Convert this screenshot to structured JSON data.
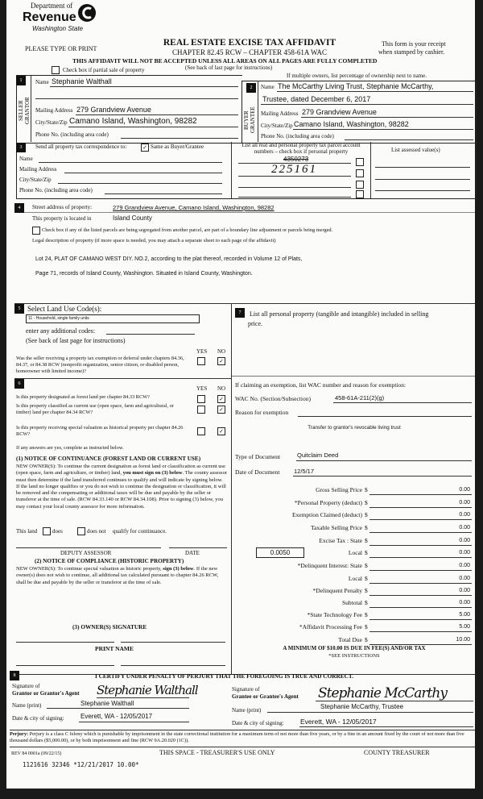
{
  "header": {
    "logo": {
      "line1": "Department of",
      "line2": "Revenue",
      "line3": "Washington State"
    },
    "title": "REAL ESTATE EXCISE TAX AFFIDAVIT",
    "chapter": "CHAPTER 82.45 RCW – CHAPTER 458-61A WAC",
    "warning": "THIS AFFIDAVIT WILL NOT BE ACCEPTED UNLESS ALL AREAS ON ALL PAGES ARE FULLY COMPLETED",
    "see_back": "(See back of last page for instructions)",
    "please_type": "PLEASE TYPE OR PRINT",
    "receipt_1": "This form is your receipt",
    "receipt_2": "when stamped by cashier.",
    "partial_sale_label": "Check box if partial sale of property",
    "partial_sale_checked": false,
    "multiple_owners": "If multiple owners, list percentage of ownership next to name."
  },
  "seller": {
    "number": "1",
    "side_label_1": "SELLER",
    "side_label_2": "GRANTOR",
    "name_label": "Name",
    "name": "Stephanie Walthall",
    "mailing_label": "Mailing Address",
    "mailing": "279 Grandview Avenue",
    "city_label": "City/State/Zip",
    "city": "Camano Island, Washington, 98282",
    "phone_label": "Phone No. (including area code)"
  },
  "buyer": {
    "number": "2",
    "side_label_1": "BUYER",
    "side_label_2": "GRANTEE",
    "name_label": "Name",
    "name_line1": "The McCarthy Living Trust, Stephanie McCarthy,",
    "name_line2": "Trustee, dated December 6, 2017",
    "mailing_label": "Mailing Address",
    "mailing": "279 Grandview Avenue",
    "city_label": "City/State/Zip",
    "city": "Camano Island, Washington, 98282",
    "phone_label": "Phone No. (including area code)"
  },
  "correspondence": {
    "number": "3",
    "label": "Send all property tax correspondence to:",
    "same_as_label": "Same as Buyer/Grantee",
    "same_as_checked": true,
    "name_label": "Name",
    "mailing_label": "Mailing Address",
    "city_label": "City/State/Zip",
    "phone_label": "Phone No. (including area code)"
  },
  "parcels": {
    "header_1": "List all real and personal property tax parcel account",
    "header_2": "numbers – check box if personal property",
    "assessed_header": "List assessed value(s)",
    "struck_number": "4350273",
    "handwritten_number": "225161"
  },
  "property": {
    "number": "4",
    "street_label": "Street address of property:",
    "street": "279 Grandview Avenue, Camano Island, Washington, 98282",
    "located_label": "This property is located in",
    "county": "Island County",
    "segregated_label": "Check box if any of the listed parcels are being segregated from another parcel, are part of a boundary line adjustment or parcels being merged.",
    "legal_label": "Legal description of property (if more space is needed, you may attach a separate sheet to each page of the affidavit)",
    "legal_line1": "Lot 24, PLAT OF CAMANO WEST DIY. NO.2, according to the plat thereof, recorded in Volume 12 of Plats,",
    "legal_line2": "Page 71, records of Island County, Washington. Situated in Island County, Washington."
  },
  "land_use": {
    "number": "5",
    "label": "Select Land Use Code(s):",
    "code": "11 - Household, single family units",
    "additional_label": "enter any additional codes:",
    "see_back": "(See back of last page for instructions)",
    "yes_label": "YES",
    "no_label": "NO",
    "exemption_question": "Was the seller receiving a property tax exemption or deferral under chapters 84.36, 84.37, or 84.38 RCW (nonprofit organization, senior citizen, or disabled person, homeowner with limited income)?",
    "exemption_answer": "NO"
  },
  "personal_property": {
    "number": "7",
    "label_1": "List all  personal property (tangible and intangible) included in selling",
    "label_2": "price."
  },
  "section6": {
    "number": "6",
    "yes_label": "YES",
    "no_label": "NO",
    "questions": [
      {
        "text": "Is this property designated as forest land per chapter 84.33 RCW?",
        "answer": "NO"
      },
      {
        "text": "Is this property classified as current use (open space, farm and agricultural, or timber) land per chapter 84.34 RCW?",
        "answer": "NO"
      },
      {
        "text": "Is this property receiving special valuation as historical property per chapter 84.26 RCW?",
        "answer": "NO"
      }
    ],
    "if_yes": "If any answers are yes, complete as instructed below.",
    "continuance_title": "(1) NOTICE OF CONTINUANCE  (FOREST LAND OR CURRENT USE)",
    "continuance_text_a": "NEW OWNER(S): To continue the current designation as forest land or classification as current use (open space, farm and agriculture, or timber) land,",
    "continuance_text_bold": "you must sign on (3) below",
    "continuance_text_b": ". The county assessor must then determine if the land transferred continues to qualify and will indicate by signing below. If the land no longer qualifies or you do not wish to continue the designation or classification, it will be removed and the compensating or additional taxes will be due and payable by the seller or transferor at the time of sale. (RCW 84.33.140 or RCW 84.34.108). Prior to signing (3) below, you may contact your local county assessor for more information.",
    "this_land": "This land",
    "does": "does",
    "does_not": "does not",
    "qualify": "qualify for continuance.",
    "deputy_assessor": "DEPUTY ASSESSOR",
    "date": "DATE",
    "compliance_title": "(2) NOTICE OF COMPLIANCE (HISTORIC PROPERTY)",
    "compliance_text_a": "NEW OWNER(S): To continue special valuation as historic property,",
    "compliance_text_bold": "sign (3) below",
    "compliance_text_b": ". If the new owner(s) does not wish to continue, all additional tax calculated pursuant to chapter 84.26 RCW, shall be due and payable by the seller or transferor at the time of sale.",
    "owner_signature": "(3)  OWNER(S) SIGNATURE",
    "print_name": "PRINT NAME"
  },
  "exemption": {
    "label": "If claiming an exemption, list WAC number and reason for exemption:",
    "wac_label": "WAC No. (Section/Subsection)",
    "wac": "458-61A-211(2)(g)",
    "reason_label": "Reason for exemption",
    "reason": "Transfer to grantor's revocable living trust",
    "doc_type_label": "Type of Document",
    "doc_type": "Quitclaim Deed",
    "doc_date_label": "Date of Document",
    "doc_date": "12/5/17"
  },
  "tax": {
    "currency": "$",
    "local_rate": "0.0050",
    "rows": [
      {
        "label": "Gross Selling Price",
        "value": "0.00"
      },
      {
        "label": "*Personal Property (deduct)",
        "value": "0.00"
      },
      {
        "label": "Exemption Claimed (deduct)",
        "value": "0.00"
      },
      {
        "label": "Taxable Selling Price",
        "value": "0.00"
      },
      {
        "label": "Excise Tax : State",
        "value": "0.00"
      },
      {
        "label": "Local",
        "value": "0.00"
      },
      {
        "label": "*Delinquent Interest: State",
        "value": "0.00"
      },
      {
        "label": "Local",
        "value": "0.00"
      },
      {
        "label": "*Delinquent Penalty",
        "value": "0.00"
      },
      {
        "label": "Subtotal",
        "value": "0.00"
      },
      {
        "label": "*State Technology Fee",
        "value": "5.00"
      },
      {
        "label": "*Affidavit Processing Fee",
        "value": "5.00"
      },
      {
        "label": "Total Due",
        "value": "10.00"
      }
    ],
    "minimum": "A MINIMUM OF $10.00 IS DUE IN FEE(S) AND/OR TAX",
    "see_instructions": "*SEE INSTRUCTIONS"
  },
  "certify": {
    "number": "8",
    "statement": "I CERTIFY UNDER PENALTY OF PERJURY THAT THE FOREGOING IS TRUE AND CORRECT.",
    "grantor_sig_label_1": "Signature of",
    "grantor_sig_label_2": "Grantor or Grantor's Agent",
    "grantor_signature": "Stephanie Walthall",
    "grantor_name_label": "Name (print)",
    "grantor_name": "Stephanie Walthall",
    "grantor_date_label": "Date & city of signing:",
    "grantor_date": "Everett, WA - 12/05/2017",
    "grantee_sig_label_1": "Signature of",
    "grantee_sig_label_2": "Grantee or Grantee's Agent",
    "grantee_signature": "Stephanie McCarthy",
    "grantee_name_label": "Name (print)",
    "grantee_name": "Stephanie McCarthy, Trustee",
    "grantee_date_label": "Date & city of signing:",
    "grantee_date": "Everett, WA - 12/05/2017"
  },
  "footer": {
    "perjury_bold": "Perjury:",
    "perjury_text": "Perjury is a class C felony which is punishable by imprisonment in the state correctional institution for a maximum term of not more than five years, or by a fine in an amount fixed by the court of not more than five thousand dollars ($5,000.00), or by both imprisonment and fine (RCW 9A.20.020 (1C)).",
    "form_number": "REV 84 0001a (09/22/15)",
    "treasurer_use": "THIS SPACE - TREASURER'S USE ONLY",
    "county_treasurer": "COUNTY TREASURER",
    "stamp": "1121616 32346 *12/21/2017 10.00*"
  }
}
